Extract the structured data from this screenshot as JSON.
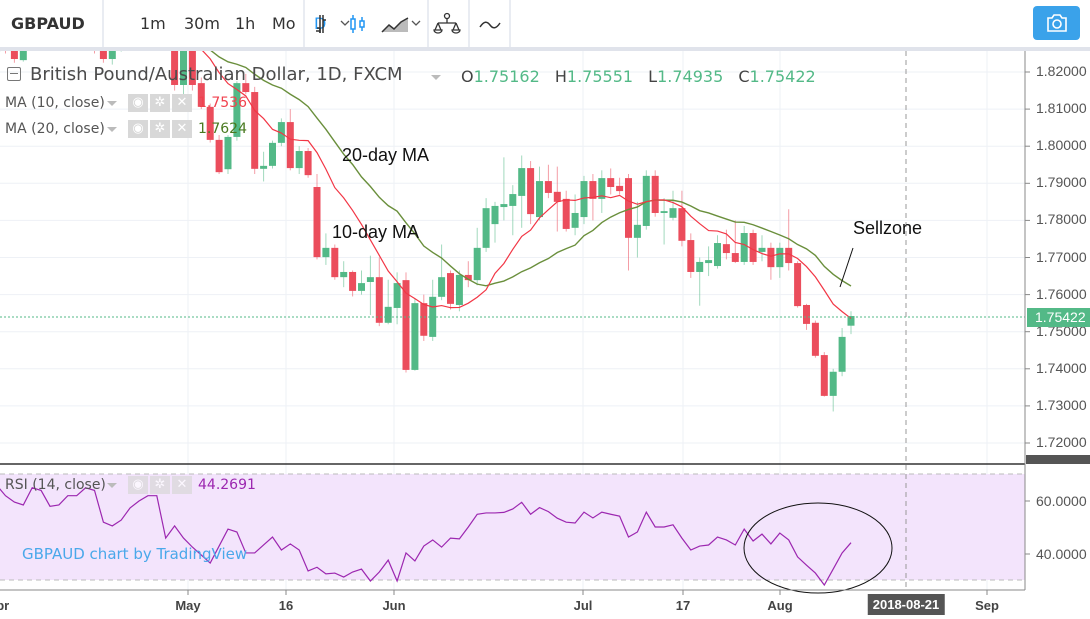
{
  "toolbar": {
    "symbol": "GBPAUD",
    "intervals": [
      "1m",
      "30m",
      "1h",
      "Mo",
      "D"
    ],
    "active_interval": "D",
    "icons": [
      "chevron-down-icon",
      "bars-icon",
      "candles-icon",
      "area-chart-icon",
      "chevron-down-icon",
      "compare-scales-icon",
      "indicator-wave-icon",
      "camera-icon"
    ]
  },
  "legend": {
    "title": "British Pound/Australian Dollar, 1D, FXCM",
    "ohlc": [
      {
        "k": "O",
        "v": "1.75162"
      },
      {
        "k": "H",
        "v": "1.75551"
      },
      {
        "k": "L",
        "v": "1.74935"
      },
      {
        "k": "C",
        "v": "1.75422"
      }
    ],
    "indicators": [
      {
        "label": "MA (10, close)",
        "value": "1.7536",
        "color": "#f0414e"
      },
      {
        "label": "MA (20, close)",
        "value": "1.7624",
        "color": "#4a7a20"
      }
    ],
    "rsi": {
      "label": "RSI (14, close)",
      "value": "44.2691",
      "color": "#9c27b0"
    }
  },
  "annotations": {
    "ma20": "20-day MA",
    "ma10": "10-day MA",
    "sellzone": "Sellzone"
  },
  "watermark": "GBPAUD chart by TradingView",
  "price_axis": {
    "ticks": [
      "1.82000",
      "1.81000",
      "1.80000",
      "1.79000",
      "1.78000",
      "1.77000",
      "1.76000",
      "1.75000",
      "1.74000",
      "1.73000",
      "1.72000"
    ],
    "last_price": "1.75422"
  },
  "rsi_axis": {
    "ticks": [
      "60.0000",
      "40.0000"
    ]
  },
  "time_axis": {
    "ticks": [
      "Apr",
      "May",
      "16",
      "Jun",
      "Jul",
      "17",
      "Aug",
      "Sep"
    ],
    "crosshair_label": "2018-08-21"
  },
  "colors": {
    "up": "#53b987",
    "down": "#eb4d5c",
    "ma10": "#f23645",
    "ma20": "#6a8f3c",
    "rsi": "#9c27b0",
    "rsi_band": "#f3e4fc",
    "accent": "#2196f3"
  },
  "chart_data": {
    "type": "candlestick",
    "symbol": "GBPAUD",
    "ylim": [
      1.715,
      1.828
    ],
    "rsi_levels": [
      70,
      30
    ],
    "ohlc": [
      [
        1.8255,
        1.8285,
        1.824,
        1.827
      ],
      [
        1.8275,
        1.829,
        1.825,
        1.8258
      ],
      [
        1.8258,
        1.8265,
        1.8225,
        1.8235
      ],
      [
        1.8232,
        1.8275,
        1.8228,
        1.8268
      ],
      [
        1.8268,
        1.83,
        1.826,
        1.829
      ],
      [
        1.829,
        1.832,
        1.8275,
        1.8305
      ],
      [
        1.8305,
        1.833,
        1.828,
        1.829
      ],
      [
        1.829,
        1.831,
        1.827,
        1.83
      ],
      [
        1.83,
        1.833,
        1.829,
        1.832
      ],
      [
        1.832,
        1.834,
        1.8295,
        1.8305
      ],
      [
        1.8305,
        1.832,
        1.8265,
        1.8275
      ],
      [
        1.8275,
        1.829,
        1.825,
        1.8262
      ],
      [
        1.8262,
        1.827,
        1.8225,
        1.8235
      ],
      [
        1.8235,
        1.8275,
        1.822,
        1.8268
      ],
      [
        1.8268,
        1.8285,
        1.8255,
        1.8275
      ],
      [
        1.8275,
        1.831,
        1.8265,
        1.83
      ],
      [
        1.83,
        1.833,
        1.829,
        1.832
      ],
      [
        1.832,
        1.8345,
        1.83,
        1.833
      ],
      [
        1.833,
        1.835,
        1.831,
        1.832
      ],
      [
        1.832,
        1.834,
        1.83,
        1.833
      ],
      [
        1.833,
        1.8345,
        1.815,
        1.8165
      ],
      [
        1.8165,
        1.832,
        1.814,
        1.83
      ],
      [
        1.83,
        1.831,
        1.815,
        1.8165
      ],
      [
        1.817,
        1.8185,
        1.81,
        1.8106
      ],
      [
        1.8106,
        1.8115,
        1.801,
        1.8017
      ],
      [
        1.8017,
        1.803,
        1.7925,
        1.793
      ],
      [
        1.7938,
        1.803,
        1.7925,
        1.8025
      ],
      [
        1.8025,
        1.8175,
        1.8015,
        1.817
      ],
      [
        1.817,
        1.8195,
        1.814,
        1.8146
      ],
      [
        1.8146,
        1.816,
        1.7925,
        1.7939
      ],
      [
        1.7939,
        1.7985,
        1.7905,
        1.7947
      ],
      [
        1.7947,
        1.8015,
        1.794,
        1.8009
      ],
      [
        1.8009,
        1.8075,
        1.8,
        1.8065
      ],
      [
        1.8065,
        1.81,
        1.7935,
        1.7941
      ],
      [
        1.7941,
        1.8,
        1.7925,
        1.7987
      ],
      [
        1.7987,
        1.7995,
        1.7915,
        1.7922
      ],
      [
        1.789,
        1.7925,
        1.7695,
        1.7701
      ],
      [
        1.7701,
        1.7765,
        1.768,
        1.7726
      ],
      [
        1.7726,
        1.7735,
        1.764,
        1.7647
      ],
      [
        1.7647,
        1.769,
        1.762,
        1.7661
      ],
      [
        1.7661,
        1.7665,
        1.7595,
        1.761
      ],
      [
        1.761,
        1.7665,
        1.76,
        1.7631
      ],
      [
        1.7634,
        1.7705,
        1.7545,
        1.7647
      ],
      [
        1.7647,
        1.77,
        1.7515,
        1.7524
      ],
      [
        1.7524,
        1.764,
        1.752,
        1.7567
      ],
      [
        1.7564,
        1.766,
        1.752,
        1.7631
      ],
      [
        1.7639,
        1.766,
        1.739,
        1.7397
      ],
      [
        1.7397,
        1.759,
        1.7395,
        1.7577
      ],
      [
        1.7577,
        1.76,
        1.7475,
        1.7489
      ],
      [
        1.7486,
        1.764,
        1.7475,
        1.7594
      ],
      [
        1.7594,
        1.7735,
        1.7585,
        1.7647
      ],
      [
        1.7658,
        1.7665,
        1.756,
        1.7575
      ],
      [
        1.7572,
        1.7665,
        1.7555,
        1.7653
      ],
      [
        1.7653,
        1.769,
        1.762,
        1.7639
      ],
      [
        1.7639,
        1.778,
        1.7625,
        1.7726
      ],
      [
        1.7726,
        1.786,
        1.7715,
        1.7833
      ],
      [
        1.779,
        1.785,
        1.774,
        1.7839
      ],
      [
        1.7836,
        1.797,
        1.78,
        1.7844
      ],
      [
        1.7839,
        1.7895,
        1.776,
        1.7871
      ],
      [
        1.7866,
        1.7975,
        1.778,
        1.7941
      ],
      [
        1.7941,
        1.796,
        1.779,
        1.7817
      ],
      [
        1.7809,
        1.7945,
        1.78,
        1.7906
      ],
      [
        1.7906,
        1.795,
        1.786,
        1.7874
      ],
      [
        1.7877,
        1.7945,
        1.777,
        1.785
      ],
      [
        1.7858,
        1.788,
        1.777,
        1.7777
      ],
      [
        1.778,
        1.787,
        1.776,
        1.782
      ],
      [
        1.7809,
        1.792,
        1.779,
        1.7906
      ],
      [
        1.7906,
        1.7925,
        1.78,
        1.7858
      ],
      [
        1.7858,
        1.7935,
        1.782,
        1.7914
      ],
      [
        1.7914,
        1.794,
        1.787,
        1.789
      ],
      [
        1.7893,
        1.7915,
        1.787,
        1.7879
      ],
      [
        1.7914,
        1.7925,
        1.7665,
        1.7753
      ],
      [
        1.7753,
        1.785,
        1.77,
        1.7788
      ],
      [
        1.7785,
        1.7935,
        1.7775,
        1.792
      ],
      [
        1.792,
        1.7935,
        1.781,
        1.782
      ],
      [
        1.782,
        1.786,
        1.7735,
        1.7825
      ],
      [
        1.7807,
        1.788,
        1.78,
        1.7833
      ],
      [
        1.7833,
        1.788,
        1.773,
        1.7745
      ],
      [
        1.7747,
        1.7765,
        1.7645,
        1.7661
      ],
      [
        1.7661,
        1.77,
        1.757,
        1.7688
      ],
      [
        1.7685,
        1.773,
        1.765,
        1.7693
      ],
      [
        1.7677,
        1.776,
        1.767,
        1.7739
      ],
      [
        1.7736,
        1.7775,
        1.7695,
        1.7712
      ],
      [
        1.7712,
        1.78,
        1.7685,
        1.7688
      ],
      [
        1.7688,
        1.7785,
        1.768,
        1.7766
      ],
      [
        1.7766,
        1.7775,
        1.768,
        1.7688
      ],
      [
        1.7715,
        1.776,
        1.769,
        1.7726
      ],
      [
        1.7726,
        1.774,
        1.764,
        1.7674
      ],
      [
        1.7674,
        1.774,
        1.7645,
        1.7726
      ],
      [
        1.7726,
        1.783,
        1.7665,
        1.7685
      ],
      [
        1.7685,
        1.769,
        1.7565,
        1.7569
      ],
      [
        1.7572,
        1.7575,
        1.7505,
        1.7521
      ],
      [
        1.7524,
        1.753,
        1.743,
        1.7435
      ],
      [
        1.7437,
        1.7445,
        1.7325,
        1.7327
      ],
      [
        1.7327,
        1.74,
        1.7285,
        1.7392
      ],
      [
        1.7392,
        1.751,
        1.738,
        1.7486
      ],
      [
        1.75162,
        1.75551,
        1.74935,
        1.75422
      ]
    ],
    "rsi": [
      66,
      62,
      59.6,
      58.5,
      65,
      64,
      58,
      58.5,
      62,
      62,
      65,
      64,
      52,
      50.6,
      52.8,
      57.4,
      60,
      62,
      62,
      46,
      50.6,
      46,
      42.6,
      39.6,
      36.6,
      43,
      49.4,
      48.3,
      40.4,
      40.4,
      43.4,
      46.4,
      41.5,
      43.8,
      41.5,
      33.6,
      35,
      32.5,
      32.8,
      31.3,
      33.2,
      34.3,
      29.8,
      33.2,
      37.7,
      29.8,
      40.4,
      37.4,
      43,
      45.3,
      42.6,
      46,
      45.7,
      50.2,
      55,
      55.5,
      55.5,
      55.7,
      57,
      59.5,
      55,
      57.5,
      56,
      53.5,
      52,
      51.7,
      55.8,
      53.6,
      55.8,
      55,
      54.3,
      46.4,
      48.3,
      55.8,
      50.2,
      50.2,
      51,
      46,
      41.5,
      43,
      43.4,
      46.4,
      45.3,
      43.4,
      49.4,
      44.9,
      47.5,
      43.8,
      47.9,
      45.3,
      38.9,
      35.8,
      32.8,
      28.3,
      34.3,
      40.4,
      44.2691
    ]
  }
}
